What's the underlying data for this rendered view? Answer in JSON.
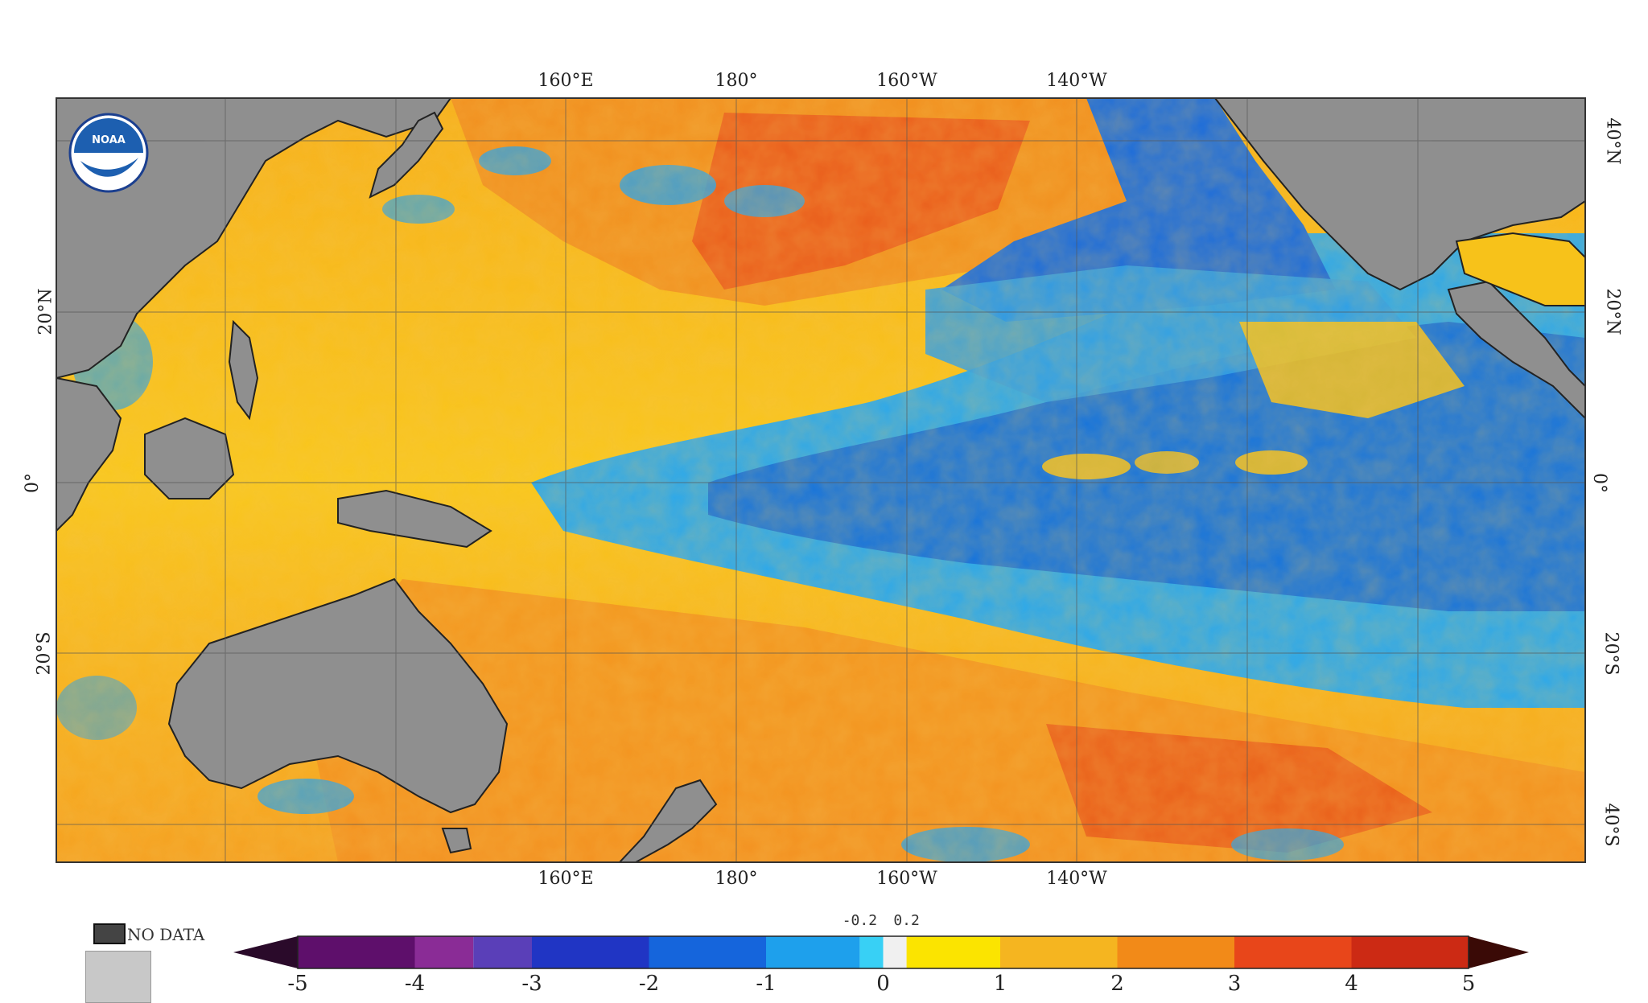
{
  "map": {
    "top_lon_labels": [
      "160°E",
      "180°",
      "160°W",
      "140°W"
    ],
    "bottom_lon_labels": [
      "160°E",
      "180°",
      "160°W",
      "140°W"
    ],
    "left_lat_labels": [
      "20°N",
      "0°",
      "20°S"
    ],
    "right_lat_labels": [
      "40°N",
      "20°N",
      "0°",
      "20°S",
      "40°S"
    ],
    "logo_text": "NOAA",
    "colors": {
      "land": "#8f8f8f",
      "ocean_warm": "#f7c21a",
      "ocean_hot": "#f08020",
      "ocean_very_hot": "#e8401a",
      "ocean_cool": "#2aa8ec",
      "ocean_cold": "#1270dc"
    }
  },
  "legend": {
    "no_data_label": "NO DATA",
    "colorbar_ticks": [
      "-5",
      "-4",
      "-3",
      "-2",
      "-1",
      "0",
      "1",
      "2",
      "3",
      "4",
      "5"
    ],
    "small_ticks": [
      "-0.2",
      "0.2"
    ],
    "colorbar_colors": [
      "#5e0f6b",
      "#8a2c96",
      "#5a3fb8",
      "#2035c4",
      "#1565dc",
      "#1ea0ec",
      "#38d0f5",
      "#f0f0f0",
      "#fbe400",
      "#f5b520",
      "#f28a18",
      "#e8461a",
      "#cc2a14",
      "#8a1208"
    ]
  }
}
